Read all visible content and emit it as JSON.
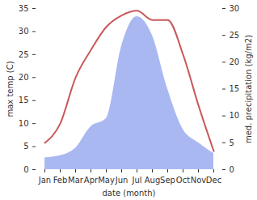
{
  "chart_data": {
    "type": "line",
    "x_label": "date (month)",
    "categories": [
      "Jan",
      "Feb",
      "Mar",
      "Apr",
      "May",
      "Jun",
      "Jul",
      "Aug",
      "Sep",
      "Oct",
      "Nov",
      "Dec"
    ],
    "series": [
      {
        "name": "med. precipitation (kg/m2)",
        "type": "area",
        "axis": "y2",
        "color": "#aab8f2",
        "values": [
          2.2,
          2.6,
          4,
          8,
          9.5,
          23,
          28.5,
          25,
          15,
          7.5,
          5,
          3
        ]
      },
      {
        "name": "max temp (C)",
        "type": "line",
        "color": "#c9595c",
        "values": [
          5.8,
          10,
          20,
          26,
          31,
          33.5,
          34.5,
          32.5,
          32.5,
          25,
          14,
          4
        ]
      }
    ],
    "ylim": [
      0,
      35
    ],
    "yticks": [
      0,
      5,
      10,
      15,
      20,
      25,
      30,
      35
    ],
    "y2lim": [
      0,
      30
    ],
    "y2ticks": [
      0,
      5,
      10,
      15,
      20,
      25,
      30
    ]
  }
}
